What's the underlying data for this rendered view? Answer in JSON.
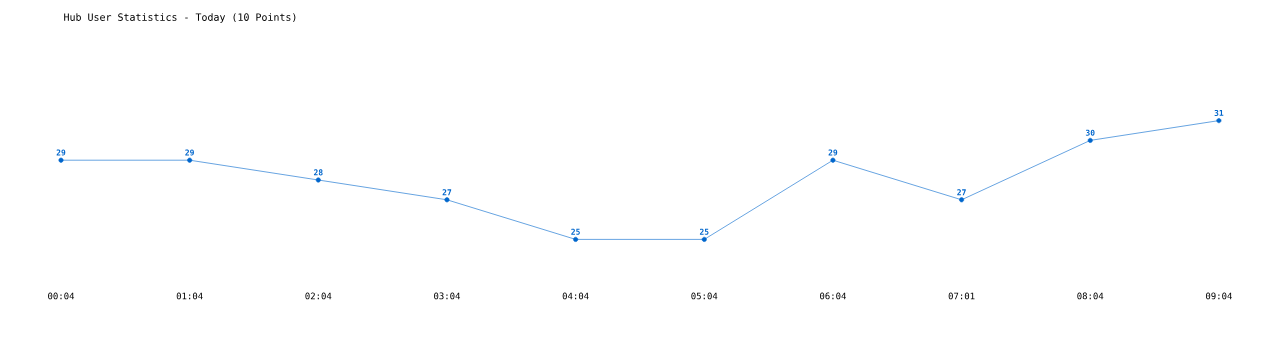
{
  "chart_data": {
    "type": "line",
    "title": "Hub User Statistics - Today (10 Points)",
    "categories": [
      "00:04",
      "01:04",
      "02:04",
      "03:04",
      "04:04",
      "05:04",
      "06:04",
      "07:01",
      "08:04",
      "09:04"
    ],
    "values": [
      29,
      29,
      28,
      27,
      25,
      25,
      29,
      27,
      30,
      31
    ],
    "color": "#0066cc",
    "marker": "circle",
    "line_style": "solid",
    "data_labels": true,
    "tick_labels": "x"
  }
}
